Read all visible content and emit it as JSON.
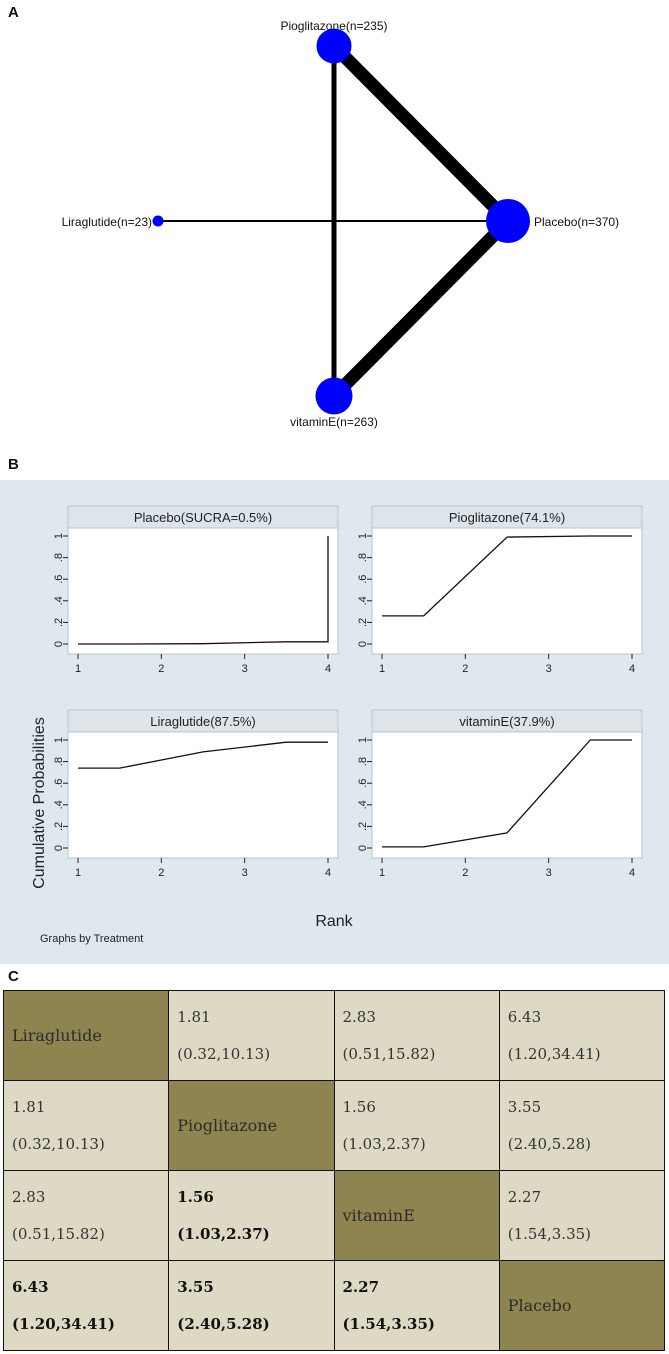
{
  "panels": {
    "a": "A",
    "b": "B",
    "c": "C"
  },
  "chart_data": [
    {
      "type": "network",
      "panel": "A",
      "nodes": [
        {
          "id": "pioglitazone",
          "label": "Pioglitazone(n=235)",
          "n": 235
        },
        {
          "id": "liraglutide",
          "label": "Liraglutide(n=23)",
          "n": 23
        },
        {
          "id": "placebo",
          "label": "Placebo(n=370)",
          "n": 370
        },
        {
          "id": "vitamine",
          "label": "vitaminE(n=263)",
          "n": 263
        }
      ],
      "edges": [
        {
          "from": "pioglitazone",
          "to": "placebo",
          "weight": "thick"
        },
        {
          "from": "vitamine",
          "to": "placebo",
          "weight": "thick"
        },
        {
          "from": "pioglitazone",
          "to": "vitamine",
          "weight": "medium"
        },
        {
          "from": "liraglutide",
          "to": "placebo",
          "weight": "thin"
        }
      ],
      "node_color": "#0000ff",
      "edge_color": "#000000"
    },
    {
      "type": "line",
      "panel": "B",
      "ylabel": "Cumulative Probabilities",
      "xlabel": "Rank",
      "note": "Graphs by Treatment",
      "xlim": [
        1,
        4
      ],
      "ylim": [
        0,
        1
      ],
      "xticks": [
        "1",
        "2",
        "3",
        "4"
      ],
      "yticks": [
        "0",
        ".2",
        ".4",
        ".6",
        ".8",
        "1"
      ],
      "subplots": [
        {
          "title": "Placebo(SUCRA=0.5%)",
          "x": [
            1,
            1.5,
            2.5,
            3.5,
            4,
            4
          ],
          "y": [
            0,
            0,
            0.003,
            0.02,
            0.02,
            1
          ]
        },
        {
          "title": "Pioglitazone(74.1%)",
          "x": [
            1,
            1.5,
            2.5,
            3.5,
            4
          ],
          "y": [
            0.26,
            0.26,
            0.99,
            1.0,
            1.0
          ]
        },
        {
          "title": "Liraglutide(87.5%)",
          "x": [
            1,
            1.5,
            2.5,
            3.5,
            4
          ],
          "y": [
            0.74,
            0.74,
            0.89,
            0.98,
            0.98
          ]
        },
        {
          "title": "vitaminE(37.9%)",
          "x": [
            1,
            1.5,
            2.5,
            3.5,
            4
          ],
          "y": [
            0.01,
            0.01,
            0.14,
            1.0,
            1.0
          ]
        }
      ]
    },
    {
      "type": "table",
      "panel": "C",
      "rows": [
        [
          {
            "label": "Liraglutide"
          },
          {
            "est": "1.81",
            "ci": "(0.32,10.13)"
          },
          {
            "est": "2.83",
            "ci": "(0.51,15.82)"
          },
          {
            "est": "6.43",
            "ci": "(1.20,34.41)"
          }
        ],
        [
          {
            "est": "1.81",
            "ci": "(0.32,10.13)"
          },
          {
            "label": "Pioglitazone"
          },
          {
            "est": "1.56",
            "ci": "(1.03,2.37)"
          },
          {
            "est": "3.55",
            "ci": "(2.40,5.28)"
          }
        ],
        [
          {
            "est": "2.83",
            "ci": "(0.51,15.82)"
          },
          {
            "est": "1.56",
            "ci": "(1.03,2.37)",
            "bold": true
          },
          {
            "label": "vitaminE"
          },
          {
            "est": "2.27",
            "ci": "(1.54,3.35)"
          }
        ],
        [
          {
            "est": "6.43",
            "ci": "(1.20,34.41)",
            "bold": true
          },
          {
            "est": "3.55",
            "ci": "(2.40,5.28)",
            "bold": true
          },
          {
            "est": "2.27",
            "ci": "(1.54,3.35)",
            "bold": true
          },
          {
            "label": "Placebo"
          }
        ]
      ]
    }
  ]
}
